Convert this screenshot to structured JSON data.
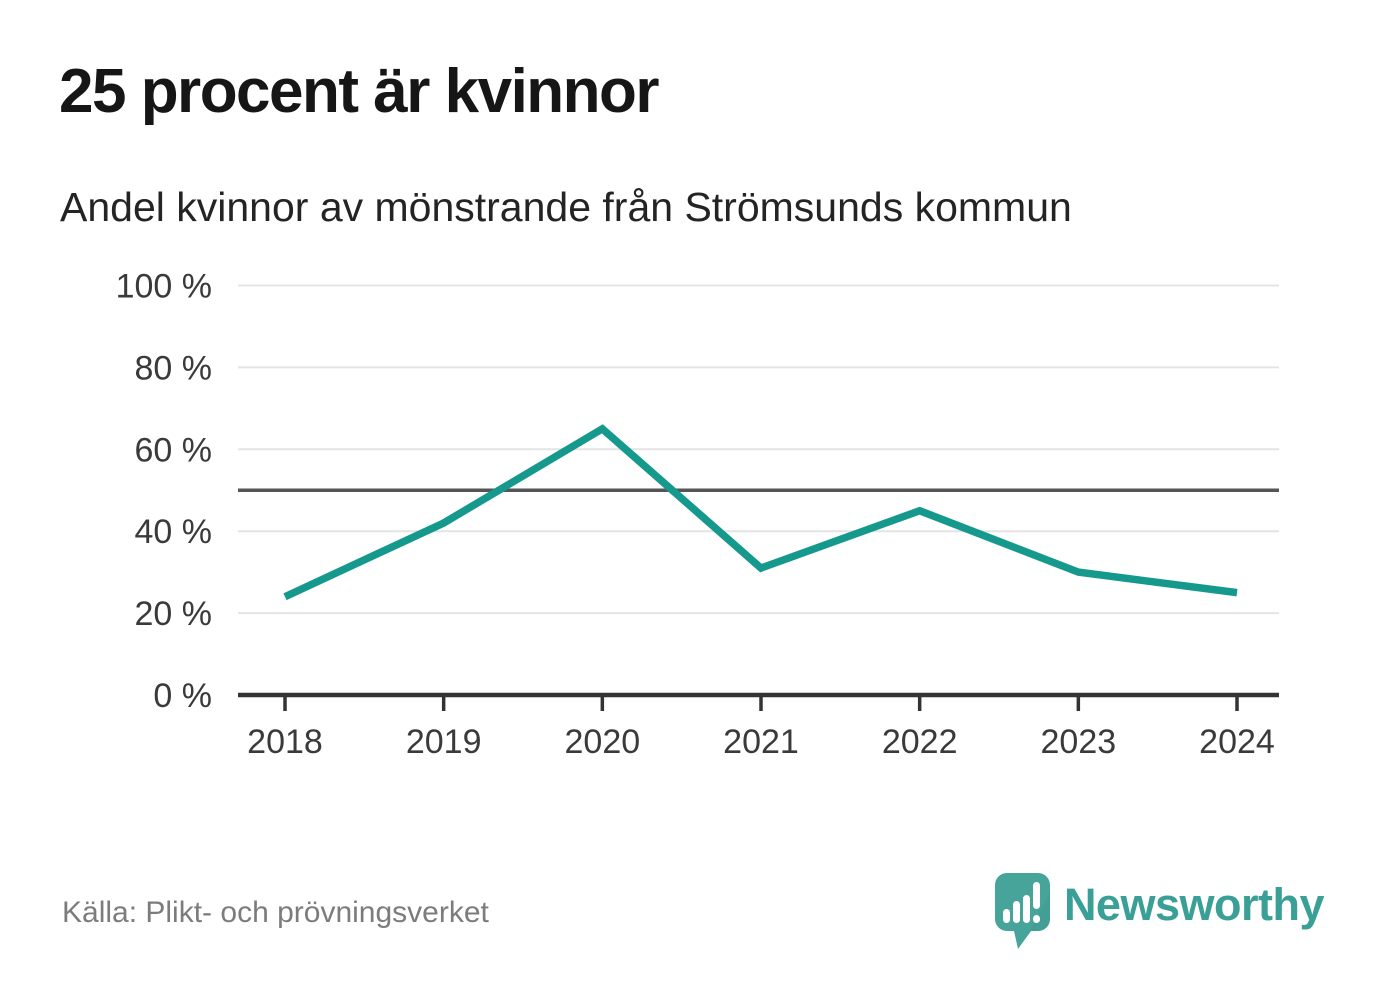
{
  "header": {
    "title": "25 procent är kvinnor",
    "subtitle": "Andel kvinnor av mönstrande från Strömsunds kommun"
  },
  "chart_data": {
    "type": "line",
    "title": "25 procent är kvinnor",
    "subtitle": "Andel kvinnor av mönstrande från Strömsunds kommun",
    "x": [
      "2018",
      "2019",
      "2020",
      "2021",
      "2022",
      "2023",
      "2024"
    ],
    "values": [
      24,
      42,
      65,
      31,
      45,
      30,
      25
    ],
    "xlabel": "",
    "ylabel": "",
    "ylim": [
      0,
      100
    ],
    "yticks": [
      0,
      20,
      40,
      60,
      80,
      100
    ],
    "ytick_labels": [
      "0 %",
      "20 %",
      "40 %",
      "60 %",
      "80 %",
      "100 %"
    ],
    "reference_line_value": 50,
    "grid": "horizontal",
    "legend": "none",
    "line_color": "#14998c",
    "reference_line_color": "#555558",
    "grid_color": "#e4e4e4",
    "axis_color": "#333333",
    "tick_label_color": "#3a3a3a"
  },
  "footer": {
    "source": "Källa: Plikt- och prövningsverket",
    "brand": "Newsworthy",
    "brand_text_color": "#3aa097",
    "logo_bubble_color": "#47a49b",
    "logo_bubble_shade_color": "#3b968d",
    "logo_glyph_color": "#ffffff"
  }
}
